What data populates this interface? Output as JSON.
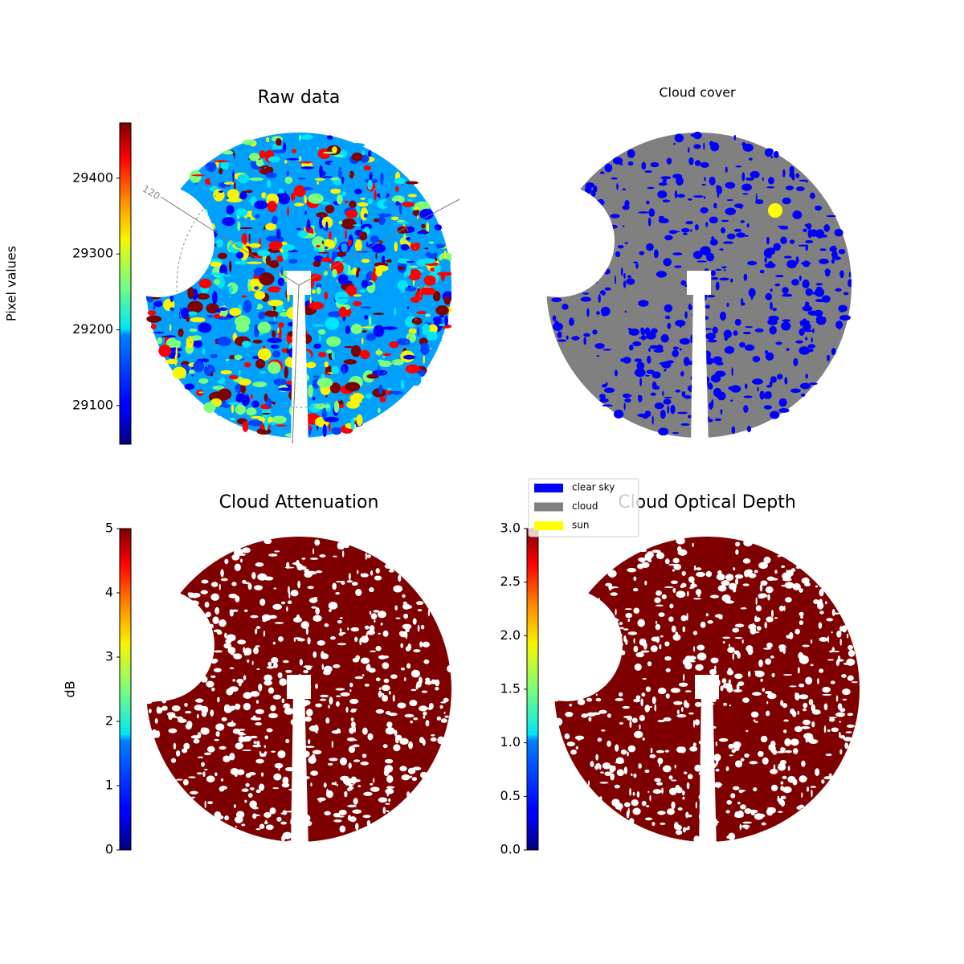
{
  "chart_data": [
    {
      "type": "image",
      "title": "Raw data",
      "colormap": "jet",
      "colorbar_label": "Pixel values",
      "ylim": [
        29049,
        29473
      ],
      "yticks": [
        29100,
        29200,
        29300,
        29400
      ],
      "annotations": [
        "120"
      ]
    },
    {
      "type": "image",
      "title": "Cloud cover",
      "legend": [
        {
          "name": "clear sky",
          "color": "#0000ff"
        },
        {
          "name": "cloud",
          "color": "#808080"
        },
        {
          "name": "sun",
          "color": "#ffff00"
        }
      ]
    },
    {
      "type": "image",
      "title": "Cloud Attenuation",
      "colormap": "jet",
      "colorbar_label": "dB",
      "ylim": [
        0,
        5
      ],
      "yticks": [
        0,
        1,
        2,
        3,
        4,
        5
      ]
    },
    {
      "type": "image",
      "title": "Cloud Optical Depth",
      "colormap": "jet",
      "ylim": [
        0,
        3
      ],
      "yticks": [
        {
          "value": 0,
          "label": "0.0"
        },
        0.5,
        {
          "value": 1,
          "label": "1.0"
        },
        1.5,
        {
          "value": 2,
          "label": "2.0"
        },
        2.5,
        {
          "value": 3,
          "label": "3.0"
        }
      ]
    }
  ]
}
